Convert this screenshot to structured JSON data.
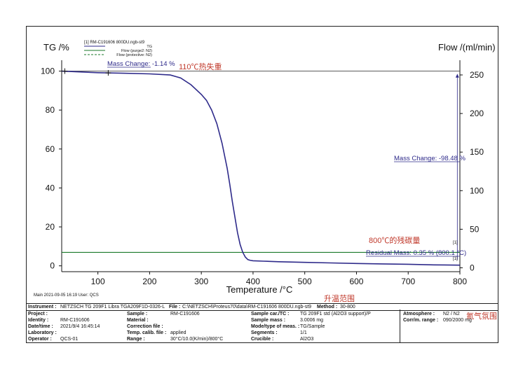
{
  "chart_data": {
    "type": "line",
    "y_left_label": "TG /%",
    "y_right_label": "Flow /(ml/min)",
    "x_label": "Temperature /°C",
    "x_ticks": [
      100,
      200,
      300,
      400,
      500,
      600,
      700,
      800
    ],
    "y_left_ticks": [
      0,
      20,
      40,
      60,
      80,
      100
    ],
    "y_right_ticks": [
      0,
      50,
      100,
      150,
      200,
      250
    ],
    "xlim": [
      30,
      800
    ],
    "ylim_left": [
      -3,
      102
    ],
    "ylim_right": [
      -5,
      260
    ],
    "legend": {
      "header": "[1]  RM-C191606 800DU.ngb-st9",
      "items": [
        "TG",
        "Flow (purge2: N2)",
        "Flow (protective: N2)"
      ]
    },
    "series": [
      {
        "name": "TG",
        "color": "#2e2a8a",
        "x": [
          30,
          100,
          150,
          200,
          240,
          260,
          280,
          300,
          310,
          320,
          330,
          340,
          350,
          355,
          360,
          365,
          370,
          375,
          380,
          385,
          390,
          395,
          400,
          420,
          450,
          500,
          550,
          600,
          650,
          700,
          750,
          800
        ],
        "y": [
          100,
          99.2,
          98.9,
          98.6,
          98.0,
          96.5,
          93.0,
          88.0,
          85.0,
          80.0,
          73.0,
          63.0,
          50.0,
          42.0,
          33.0,
          25.0,
          17.0,
          11.0,
          7.0,
          4.5,
          3.2,
          2.8,
          2.6,
          2.4,
          2.1,
          1.8,
          1.5,
          1.2,
          1.0,
          0.8,
          0.5,
          0.35
        ]
      },
      {
        "name": "Flow (purge2: N2)",
        "color": "#1a7a2a",
        "x": [
          30,
          800
        ],
        "y_right": [
          20,
          20
        ]
      }
    ],
    "annotations": {
      "mass_change_1": "Mass Change: -1.14 %",
      "mass_change_2": "Mass Change: -98.48 %",
      "residual": "Residual Mass: 0.35 % (800.1 °C)",
      "marker_a": "[1]",
      "marker_b": "[1]",
      "cn_110": "110℃热失重",
      "cn_800": "800℃的残碳量",
      "cn_heat": "升温范围",
      "cn_atm": "氮气氛围"
    }
  },
  "main_line": {
    "left": "Main    2021-09-05 16:19    User: QCS"
  },
  "info": {
    "instrument_label": "Instrument :",
    "instrument_value": "NETZSCH TG 209F1 Libra TGA209F1D-0326-L",
    "file_label": "File :",
    "file_value": "C:\\NETZSCH\\Proteus70\\data\\RM-C191606 800DU.ngb-st9",
    "method_label": "Method :",
    "method_value": "30-800",
    "rows": [
      {
        "a_label": "Project :",
        "a_value": "",
        "b_label": "Sample :",
        "b_value": "RM-C191606",
        "c_label": "Sample car./TC :",
        "c_value": "TG 209F1 std (Al2O3 support)/P",
        "d_label": "Atmosphere :",
        "d_value": "N2 / N2"
      },
      {
        "a_label": "Identity :",
        "a_value": "RM-C191606",
        "b_label": "Material :",
        "b_value": "",
        "c_label": "Sample mass :",
        "c_value": "3.0006 mg",
        "d_label": "Corr/m. range :",
        "d_value": "090/2000 mg"
      },
      {
        "a_label": "Date/time :",
        "a_value": "2021/9/4 16:45:14",
        "b_label": "Correction file :",
        "b_value": "",
        "c_label": "Mode/type of meas. :",
        "c_value": "TG/Sample",
        "d_label": "",
        "d_value": ""
      },
      {
        "a_label": "Laboratory :",
        "a_value": "",
        "b_label": "Temp. calib. file :",
        "b_value": "applied",
        "c_label": "Segments :",
        "c_value": "1/1",
        "d_label": "",
        "d_value": ""
      },
      {
        "a_label": "Operator :",
        "a_value": "QCS-01",
        "b_label": "Range :",
        "b_value": "30°C/10.0(K/min)/800°C",
        "c_label": "Crucible :",
        "c_value": "Al2O3",
        "d_label": "",
        "d_value": ""
      }
    ]
  }
}
